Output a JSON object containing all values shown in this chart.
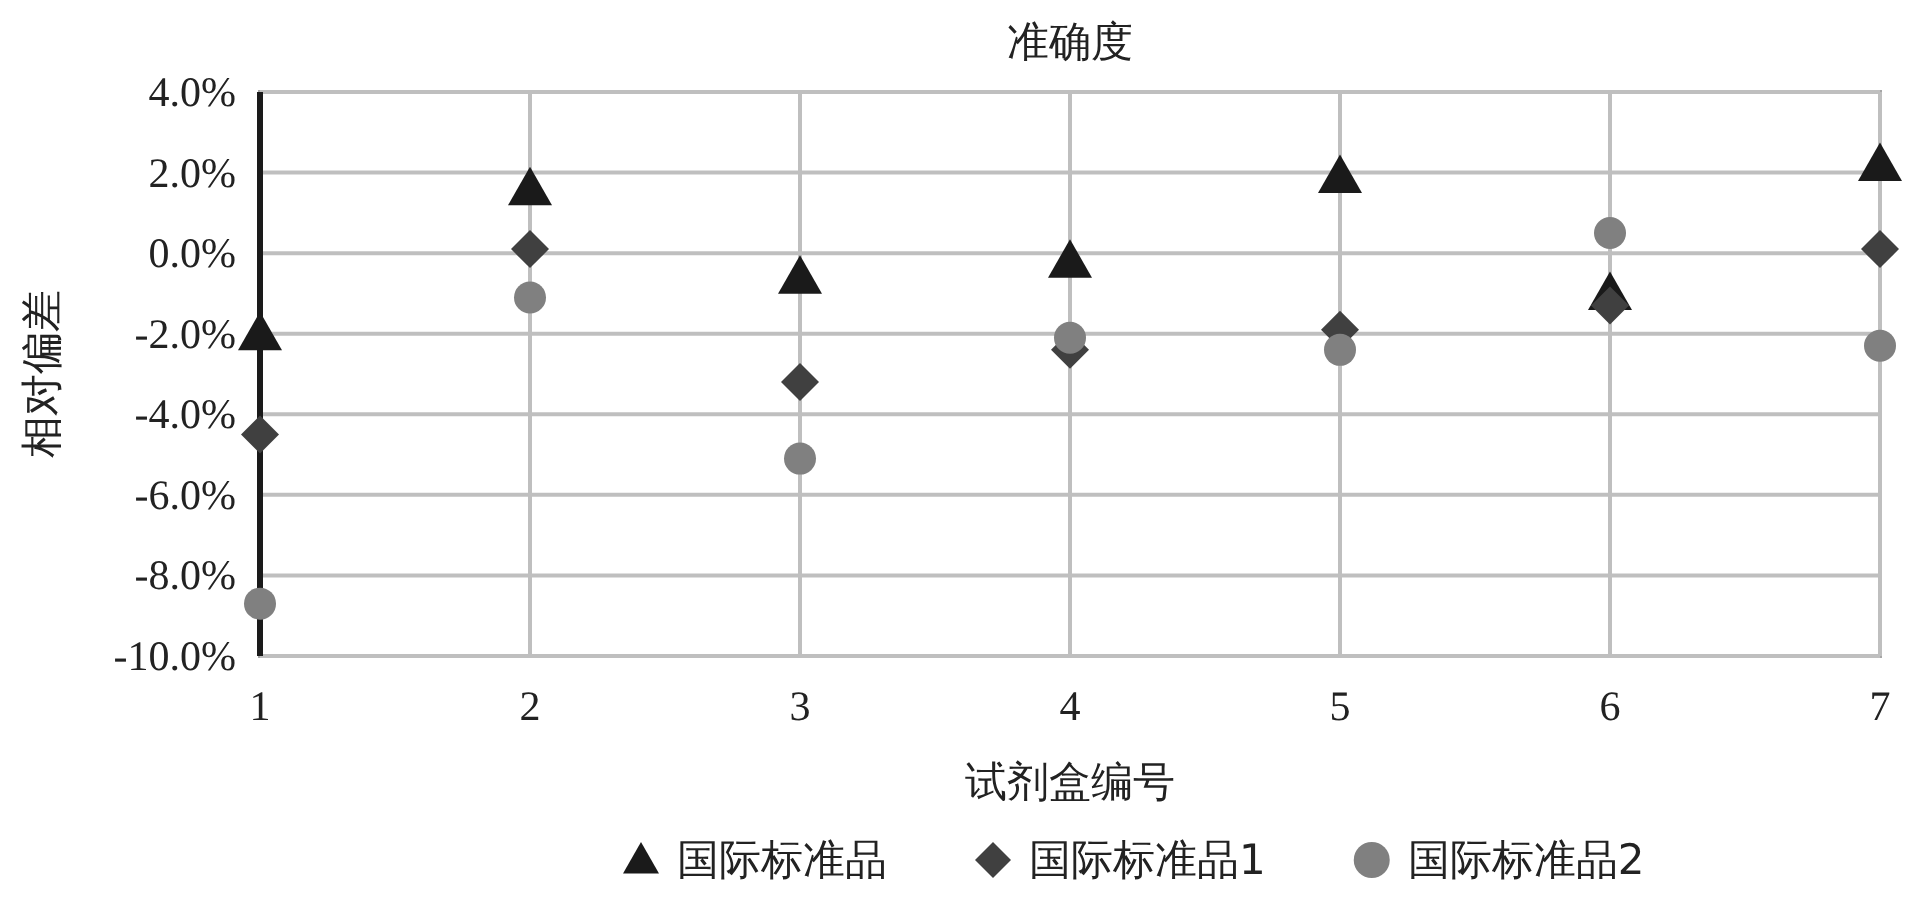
{
  "chart_data": {
    "type": "scatter",
    "title": "准确度",
    "xlabel": "试剂盒编号",
    "ylabel": "相对偏差",
    "x": [
      1,
      2,
      3,
      4,
      5,
      6,
      7
    ],
    "series": [
      {
        "name": "国际标准品",
        "color": "#1a1a1a",
        "marker": "triangle",
        "values": [
          -2.0,
          1.6,
          -0.6,
          -0.2,
          1.9,
          -1.0,
          2.2
        ]
      },
      {
        "name": "国际标准品1",
        "color": "#404040",
        "marker": "diamond",
        "values": [
          -4.5,
          0.1,
          -3.2,
          -2.4,
          -1.9,
          -1.3,
          0.1
        ]
      },
      {
        "name": "国际标准品2",
        "color": "#808080",
        "marker": "circle",
        "values": [
          -8.7,
          -1.1,
          -5.1,
          -2.1,
          -2.4,
          0.5,
          -2.3
        ]
      }
    ],
    "xlim": [
      1,
      7
    ],
    "xticks": [
      1,
      2,
      3,
      4,
      5,
      6,
      7
    ],
    "ylim": [
      -10,
      4
    ],
    "yticks": [
      {
        "value": 4,
        "label": "4.0%"
      },
      {
        "value": 2,
        "label": "2.0%"
      },
      {
        "value": 0,
        "label": "0.0%"
      },
      {
        "value": -2,
        "label": "-2.0%"
      },
      {
        "value": -4,
        "label": "-4.0%"
      },
      {
        "value": -6,
        "label": "-6.0%"
      },
      {
        "value": -8,
        "label": "-8.0%"
      },
      {
        "value": -10,
        "label": "-10.0%"
      }
    ],
    "grid": true,
    "legend": "bottom"
  }
}
